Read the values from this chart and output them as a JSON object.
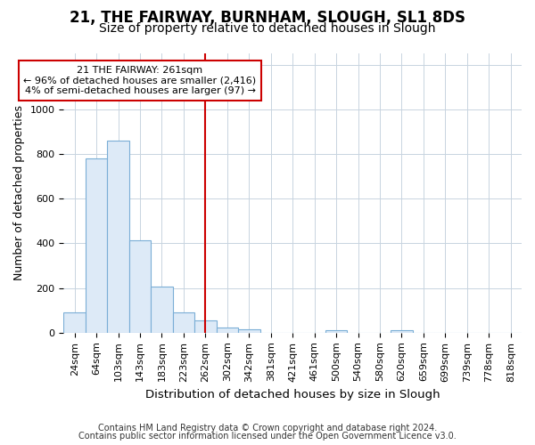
{
  "title": "21, THE FAIRWAY, BURNHAM, SLOUGH, SL1 8DS",
  "subtitle": "Size of property relative to detached houses in Slough",
  "xlabel": "Distribution of detached houses by size in Slough",
  "ylabel": "Number of detached properties",
  "bar_labels": [
    "24sqm",
    "64sqm",
    "103sqm",
    "143sqm",
    "183sqm",
    "223sqm",
    "262sqm",
    "302sqm",
    "342sqm",
    "381sqm",
    "421sqm",
    "461sqm",
    "500sqm",
    "540sqm",
    "580sqm",
    "620sqm",
    "659sqm",
    "699sqm",
    "739sqm",
    "778sqm",
    "818sqm"
  ],
  "bar_values": [
    90,
    780,
    860,
    415,
    205,
    90,
    55,
    25,
    15,
    0,
    0,
    0,
    10,
    0,
    0,
    10,
    0,
    0,
    0,
    0,
    0
  ],
  "bar_color": "#ddeaf7",
  "bar_edge_color": "#7aaed6",
  "annotation_text": "21 THE FAIRWAY: 261sqm\n← 96% of detached houses are smaller (2,416)\n4% of semi-detached houses are larger (97) →",
  "vline_x": 6.0,
  "vline_color": "#cc0000",
  "annotation_box_facecolor": "#ffffff",
  "annotation_box_edgecolor": "#cc0000",
  "ylim": [
    0,
    1250
  ],
  "yticks": [
    0,
    200,
    400,
    600,
    800,
    1000,
    1200
  ],
  "footer_line1": "Contains HM Land Registry data © Crown copyright and database right 2024.",
  "footer_line2": "Contains public sector information licensed under the Open Government Licence v3.0.",
  "bg_color": "#ffffff",
  "grid_color": "#c8d4e0",
  "title_fontsize": 12,
  "subtitle_fontsize": 10,
  "tick_fontsize": 8,
  "ylabel_fontsize": 9,
  "xlabel_fontsize": 9.5,
  "footer_fontsize": 7
}
